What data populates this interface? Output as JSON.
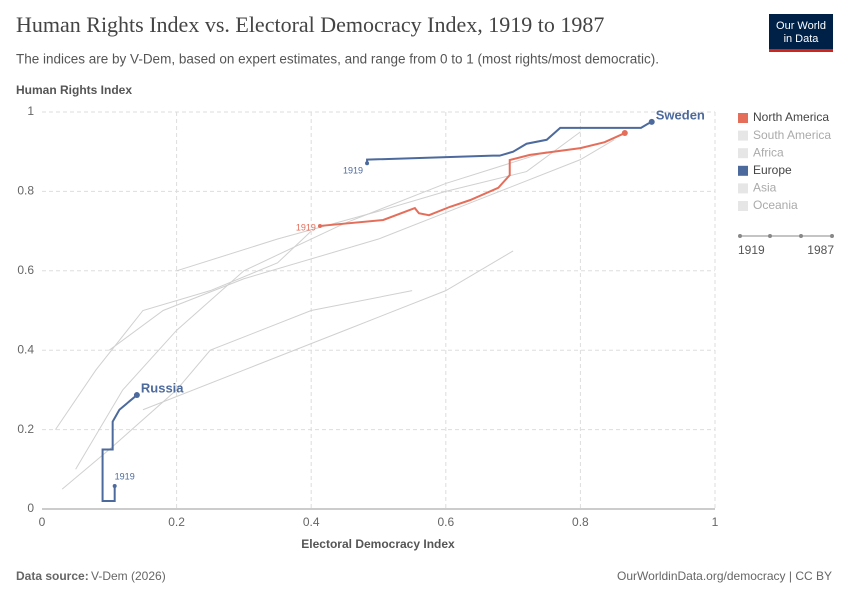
{
  "chart_data": {
    "type": "line",
    "title": "Human Rights Index vs. Electoral Democracy Index, 1919 to 1987",
    "subtitle": "The indices are by V-Dem, based on expert estimates, and range from 0 to 1 (most rights/most democratic).",
    "y_label": "Human Rights Index",
    "x_label": "Electoral Democracy Index",
    "xlim": [
      0,
      1
    ],
    "xticks": [
      0,
      0.2,
      0.4,
      0.6,
      0.8,
      1
    ],
    "ylim": [
      0,
      1
    ],
    "yticks": [
      0,
      0.2,
      0.4,
      0.6,
      0.8,
      1
    ],
    "grid": true,
    "series": [
      {
        "color": "#d0d0d0",
        "x": [
          0.05,
          0.12,
          0.2,
          0.3,
          0.45,
          0.6,
          0.75
        ],
        "values": [
          0.1,
          0.3,
          0.45,
          0.6,
          0.72,
          0.82,
          0.9
        ]
      },
      {
        "color": "#d0d0d0",
        "x": [
          0.02,
          0.08,
          0.15,
          0.25,
          0.35,
          0.4
        ],
        "values": [
          0.2,
          0.35,
          0.5,
          0.55,
          0.62,
          0.7
        ]
      },
      {
        "color": "#d0d0d0",
        "x": [
          0.1,
          0.18,
          0.3,
          0.5,
          0.65,
          0.8,
          0.85
        ],
        "values": [
          0.4,
          0.5,
          0.58,
          0.68,
          0.78,
          0.88,
          0.93
        ]
      },
      {
        "color": "#d0d0d0",
        "x": [
          0.03,
          0.1,
          0.2,
          0.25,
          0.4,
          0.55
        ],
        "values": [
          0.05,
          0.15,
          0.3,
          0.4,
          0.5,
          0.55
        ]
      },
      {
        "color": "#d0d0d0",
        "x": [
          0.15,
          0.3,
          0.45,
          0.6,
          0.7
        ],
        "values": [
          0.25,
          0.35,
          0.45,
          0.55,
          0.65
        ]
      },
      {
        "color": "#d0d0d0",
        "x": [
          0.2,
          0.35,
          0.5,
          0.6,
          0.72,
          0.8
        ],
        "values": [
          0.6,
          0.68,
          0.75,
          0.8,
          0.85,
          0.95
        ]
      },
      {
        "color": "#e56e5a",
        "start_label": "1919",
        "x": [
          0.413,
          0.507,
          0.554,
          0.56,
          0.575,
          0.606,
          0.636,
          0.678,
          0.695,
          0.695,
          0.725,
          0.8,
          0.836,
          0.866
        ],
        "values": [
          0.713,
          0.728,
          0.758,
          0.745,
          0.74,
          0.761,
          0.778,
          0.809,
          0.841,
          0.879,
          0.892,
          0.909,
          0.924,
          0.947
        ]
      },
      {
        "name": "Sweden",
        "color": "#4c6a9c",
        "start_label": "1919",
        "x": [
          0.483,
          0.483,
          0.67,
          0.68,
          0.7,
          0.72,
          0.75,
          0.77,
          0.88,
          0.89,
          0.9,
          0.906
        ],
        "values": [
          0.871,
          0.88,
          0.89,
          0.89,
          0.9,
          0.92,
          0.93,
          0.96,
          0.96,
          0.96,
          0.97,
          0.975
        ]
      },
      {
        "name": "Russia",
        "color": "#4c6a9c",
        "start_label": "1919",
        "x": [
          0.108,
          0.108,
          0.09,
          0.09,
          0.105,
          0.105,
          0.115,
          0.141
        ],
        "values": [
          0.058,
          0.02,
          0.02,
          0.15,
          0.15,
          0.22,
          0.25,
          0.287
        ]
      }
    ],
    "legend": [
      {
        "name": "North America",
        "color": "#e56e5a"
      },
      {
        "name": "South America",
        "color": "#e6e6e6"
      },
      {
        "name": "Africa",
        "color": "#e6e6e6"
      },
      {
        "name": "Europe",
        "color": "#4c6a9c"
      },
      {
        "name": "Asia",
        "color": "#e6e6e6"
      },
      {
        "name": "Oceania",
        "color": "#e6e6e6"
      }
    ],
    "timeline": [
      "1919",
      "1987"
    ],
    "source_label": "Data source:",
    "source": "V-Dem (2026)",
    "footer_right": "OurWorldinData.org/democracy | CC BY",
    "logo": [
      "Our World",
      "in Data"
    ]
  }
}
